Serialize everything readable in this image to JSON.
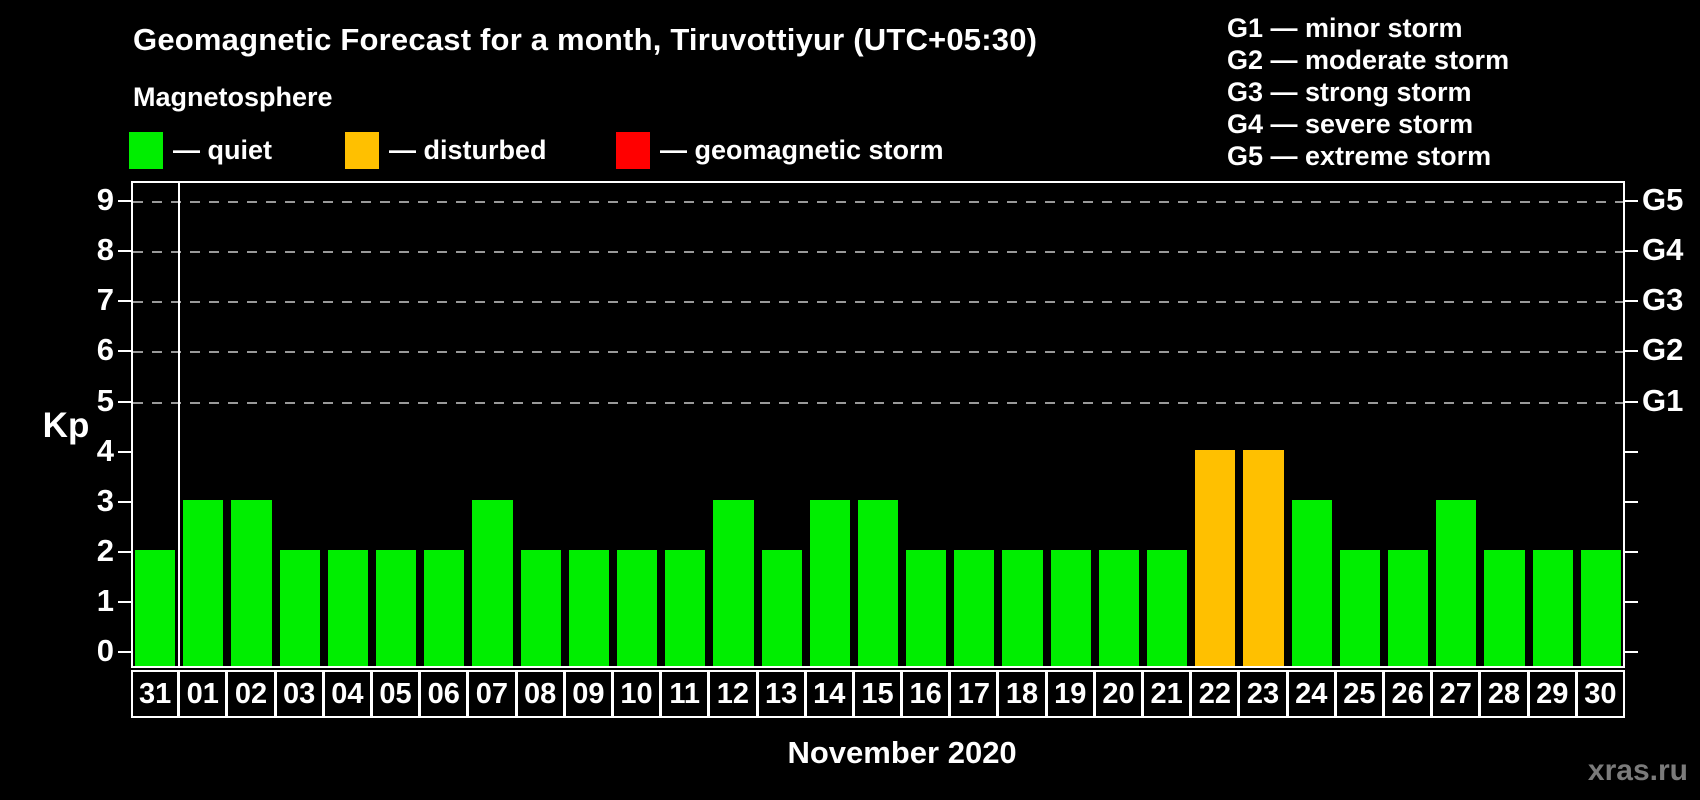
{
  "title": "Geomagnetic Forecast for a month, Tiruvottiyur (UTC+05:30)",
  "legend": {
    "heading": "Magnetosphere",
    "items": [
      {
        "name": "quiet",
        "label": "— quiet",
        "color": "#00ee00"
      },
      {
        "name": "disturbed",
        "label": "— disturbed",
        "color": "#ffc000"
      },
      {
        "name": "storm",
        "label": "— geomagnetic storm",
        "color": "#ff0000"
      }
    ]
  },
  "storm_scale": {
    "items": [
      "G1 — minor storm",
      "G2 — moderate storm",
      "G3 — strong storm",
      "G4 — severe storm",
      "G5 — extreme storm"
    ]
  },
  "chart_data": {
    "type": "bar",
    "title": "Geomagnetic Forecast for a month, Tiruvottiyur (UTC+05:30)",
    "xlabel": "November 2020",
    "ylabel": "Kp",
    "categories": [
      "31",
      "01",
      "02",
      "03",
      "04",
      "05",
      "06",
      "07",
      "08",
      "09",
      "10",
      "11",
      "12",
      "13",
      "14",
      "15",
      "16",
      "17",
      "18",
      "19",
      "20",
      "21",
      "22",
      "23",
      "24",
      "25",
      "26",
      "27",
      "28",
      "29",
      "30"
    ],
    "values": [
      2,
      3,
      3,
      2,
      2,
      2,
      2,
      3,
      2,
      2,
      2,
      2,
      3,
      2,
      3,
      3,
      2,
      2,
      2,
      2,
      2,
      2,
      4,
      4,
      3,
      2,
      2,
      3,
      2,
      2,
      2
    ],
    "bar_colors": [
      "#00ee00",
      "#00ee00",
      "#00ee00",
      "#00ee00",
      "#00ee00",
      "#00ee00",
      "#00ee00",
      "#00ee00",
      "#00ee00",
      "#00ee00",
      "#00ee00",
      "#00ee00",
      "#00ee00",
      "#00ee00",
      "#00ee00",
      "#00ee00",
      "#00ee00",
      "#00ee00",
      "#00ee00",
      "#00ee00",
      "#00ee00",
      "#00ee00",
      "#ffc000",
      "#ffc000",
      "#00ee00",
      "#00ee00",
      "#00ee00",
      "#00ee00",
      "#00ee00",
      "#00ee00",
      "#00ee00"
    ],
    "ylim": [
      0,
      9.4
    ],
    "yticks": [
      0,
      1,
      2,
      3,
      4,
      5,
      6,
      7,
      8,
      9
    ],
    "gridline_values": [
      5,
      6,
      7,
      8,
      9
    ],
    "right_axis": [
      {
        "value": 5,
        "label": "G1"
      },
      {
        "value": 6,
        "label": "G2"
      },
      {
        "value": 7,
        "label": "G3"
      },
      {
        "value": 8,
        "label": "G4"
      },
      {
        "value": 9,
        "label": "G5"
      }
    ],
    "month_separator_after_index": 0,
    "grid": "dashed horizontal lines at storm levels G1–G5",
    "legend_position": "top"
  },
  "watermark": "xras.ru",
  "colors": {
    "background": "#000000",
    "grid": "#999999",
    "axis": "#ffffff",
    "watermark_text": "#7b7b7b"
  }
}
